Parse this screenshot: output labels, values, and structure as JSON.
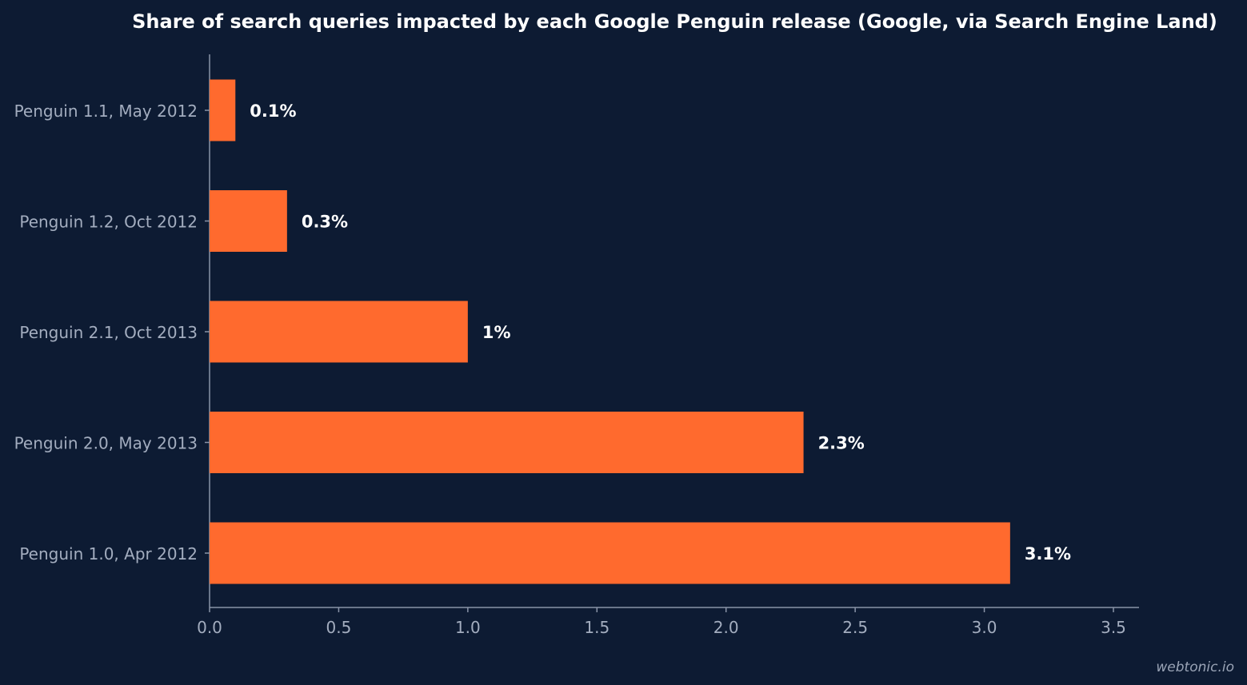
{
  "chart_data": {
    "type": "bar",
    "orientation": "horizontal",
    "title": "Share of search queries impacted by each Google Penguin release (Google, via Search Engine Land)",
    "xlabel": "",
    "ylabel": "",
    "xlim": [
      0,
      3.6
    ],
    "x_ticks": [
      "0.0",
      "0.5",
      "1.0",
      "1.5",
      "2.0",
      "2.5",
      "3.0",
      "3.5"
    ],
    "categories": [
      "Penguin 1.1, May 2012",
      "Penguin 1.2, Oct 2012",
      "Penguin 2.1, Oct 2013",
      "Penguin 2.0, May 2013",
      "Penguin 1.0, Apr 2012"
    ],
    "values": [
      0.1,
      0.3,
      1,
      2.3,
      3.1
    ],
    "data_labels": [
      "0.1%",
      "0.3%",
      "1%",
      "2.3%",
      "3.1%"
    ],
    "grid": false,
    "legend": "none"
  },
  "colors": {
    "background": "#0d1b33",
    "bar": "#ff6a2e",
    "axis": "#8a94a8",
    "tick_label": "#a3adbf",
    "data_label": "#ffffff"
  },
  "watermark": "webtonic.io"
}
